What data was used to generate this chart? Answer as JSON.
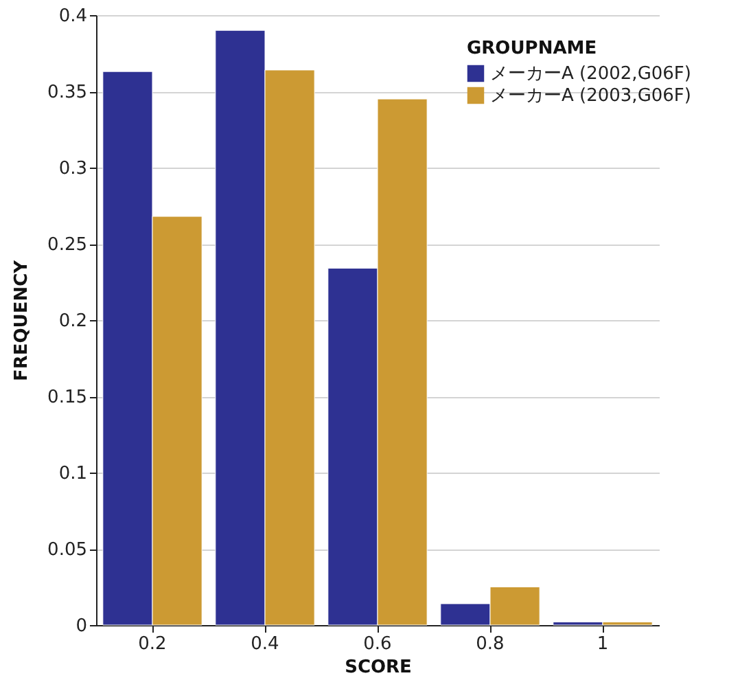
{
  "chart_data": {
    "type": "bar",
    "xlabel": "SCORE",
    "ylabel": "FREQUENCY",
    "legend_title": "GROUPNAME",
    "categories": [
      "0.2",
      "0.4",
      "0.6",
      "0.8",
      "1"
    ],
    "series": [
      {
        "name": "メーカーA (2002,G06F)",
        "color": "#2e3192",
        "values": [
          0.363,
          0.39,
          0.234,
          0.014,
          0.002
        ]
      },
      {
        "name": "メーカーA (2003,G06F)",
        "color": "#cc9a33",
        "values": [
          0.268,
          0.364,
          0.345,
          0.025,
          0.002
        ]
      }
    ],
    "ylim": [
      0,
      0.4
    ],
    "yticks": [
      0,
      0.05,
      0.1,
      0.15,
      0.2,
      0.25,
      0.3,
      0.35,
      0.4
    ],
    "grid": "y",
    "legend": "top right"
  }
}
